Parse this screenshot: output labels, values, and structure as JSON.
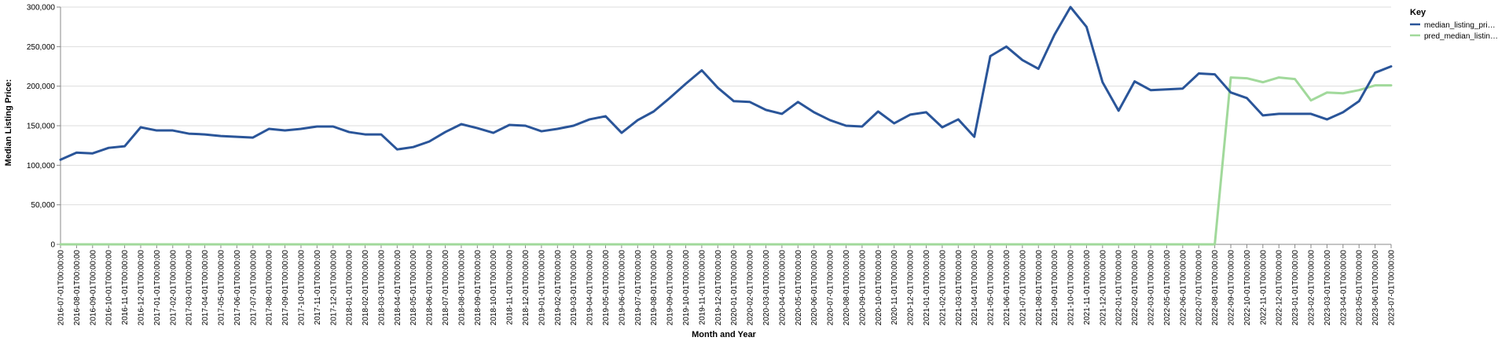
{
  "chart_data": {
    "type": "line",
    "xlabel": "Month and Year",
    "ylabel": "Median Listing Price:",
    "ylim": [
      0,
      300000
    ],
    "yticks": [
      "0",
      "50,000",
      "100,000",
      "150,000",
      "200,000",
      "250,000",
      "300,000"
    ],
    "ytick_values": [
      0,
      50000,
      100000,
      150000,
      200000,
      250000,
      300000
    ],
    "grid": true,
    "legend": {
      "title": "Key",
      "placement": "right"
    },
    "categories": [
      "2016-07-01T00:00:00",
      "2016-08-01T00:00:00",
      "2016-09-01T00:00:00",
      "2016-10-01T00:00:00",
      "2016-11-01T00:00:00",
      "2016-12-01T00:00:00",
      "2017-01-01T00:00:00",
      "2017-02-01T00:00:00",
      "2017-03-01T00:00:00",
      "2017-04-01T00:00:00",
      "2017-05-01T00:00:00",
      "2017-06-01T00:00:00",
      "2017-07-01T00:00:00",
      "2017-08-01T00:00:00",
      "2017-09-01T00:00:00",
      "2017-10-01T00:00:00",
      "2017-11-01T00:00:00",
      "2017-12-01T00:00:00",
      "2018-01-01T00:00:00",
      "2018-02-01T00:00:00",
      "2018-03-01T00:00:00",
      "2018-04-01T00:00:00",
      "2018-05-01T00:00:00",
      "2018-06-01T00:00:00",
      "2018-07-01T00:00:00",
      "2018-08-01T00:00:00",
      "2018-09-01T00:00:00",
      "2018-10-01T00:00:00",
      "2018-11-01T00:00:00",
      "2018-12-01T00:00:00",
      "2019-01-01T00:00:00",
      "2019-02-01T00:00:00",
      "2019-03-01T00:00:00",
      "2019-04-01T00:00:00",
      "2019-05-01T00:00:00",
      "2019-06-01T00:00:00",
      "2019-07-01T00:00:00",
      "2019-08-01T00:00:00",
      "2019-09-01T00:00:00",
      "2019-10-01T00:00:00",
      "2019-11-01T00:00:00",
      "2019-12-01T00:00:00",
      "2020-01-01T00:00:00",
      "2020-02-01T00:00:00",
      "2020-03-01T00:00:00",
      "2020-04-01T00:00:00",
      "2020-05-01T00:00:00",
      "2020-06-01T00:00:00",
      "2020-07-01T00:00:00",
      "2020-08-01T00:00:00",
      "2020-09-01T00:00:00",
      "2020-10-01T00:00:00",
      "2020-11-01T00:00:00",
      "2020-12-01T00:00:00",
      "2021-01-01T00:00:00",
      "2021-02-01T00:00:00",
      "2021-03-01T00:00:00",
      "2021-04-01T00:00:00",
      "2021-05-01T00:00:00",
      "2021-06-01T00:00:00",
      "2021-07-01T00:00:00",
      "2021-08-01T00:00:00",
      "2021-09-01T00:00:00",
      "2021-10-01T00:00:00",
      "2021-11-01T00:00:00",
      "2021-12-01T00:00:00",
      "2022-01-01T00:00:00",
      "2022-02-01T00:00:00",
      "2022-03-01T00:00:00",
      "2022-05-01T00:00:00",
      "2022-06-01T00:00:00",
      "2022-07-01T00:00:00",
      "2022-08-01T00:00:00",
      "2022-09-01T00:00:00",
      "2022-10-01T00:00:00",
      "2022-11-01T00:00:00",
      "2022-12-01T00:00:00",
      "2023-01-01T00:00:00",
      "2023-02-01T00:00:00",
      "2023-03-01T00:00:00",
      "2023-04-01T00:00:00",
      "2023-05-01T00:00:00",
      "2023-06-01T00:00:00",
      "2023-07-01T00:00:00"
    ],
    "series": [
      {
        "name": "median_listing_pri…",
        "color": "#2a5599",
        "values": [
          107000,
          116000,
          115000,
          122000,
          124000,
          148000,
          144000,
          144000,
          140000,
          139000,
          137000,
          136000,
          135000,
          146000,
          144000,
          146000,
          149000,
          149000,
          142000,
          139000,
          139000,
          120000,
          123000,
          130000,
          142000,
          152000,
          147000,
          141000,
          151000,
          150000,
          143000,
          146000,
          150000,
          158000,
          162000,
          141000,
          157000,
          168000,
          185000,
          203000,
          220000,
          198000,
          181000,
          180000,
          170000,
          165000,
          180000,
          167000,
          157000,
          150000,
          149000,
          168000,
          153000,
          164000,
          167000,
          148000,
          158000,
          136000,
          238000,
          250000,
          233000,
          222000,
          265000,
          300000,
          275000,
          205000,
          169000,
          206000,
          195000,
          196000,
          197000,
          216000,
          215000,
          192000,
          185000,
          163000,
          165000,
          165000,
          165000,
          158000,
          167000,
          181000,
          217000,
          225000
        ]
      },
      {
        "name": "pred_median_listin…",
        "color": "#a1d99b",
        "values": [
          0,
          0,
          0,
          0,
          0,
          0,
          0,
          0,
          0,
          0,
          0,
          0,
          0,
          0,
          0,
          0,
          0,
          0,
          0,
          0,
          0,
          0,
          0,
          0,
          0,
          0,
          0,
          0,
          0,
          0,
          0,
          0,
          0,
          0,
          0,
          0,
          0,
          0,
          0,
          0,
          0,
          0,
          0,
          0,
          0,
          0,
          0,
          0,
          0,
          0,
          0,
          0,
          0,
          0,
          0,
          0,
          0,
          0,
          0,
          0,
          0,
          0,
          0,
          0,
          0,
          0,
          0,
          0,
          0,
          0,
          0,
          0,
          0,
          211000,
          210000,
          205000,
          211000,
          209000,
          182000,
          192000,
          191000,
          195000,
          201000,
          201000
        ]
      }
    ]
  }
}
